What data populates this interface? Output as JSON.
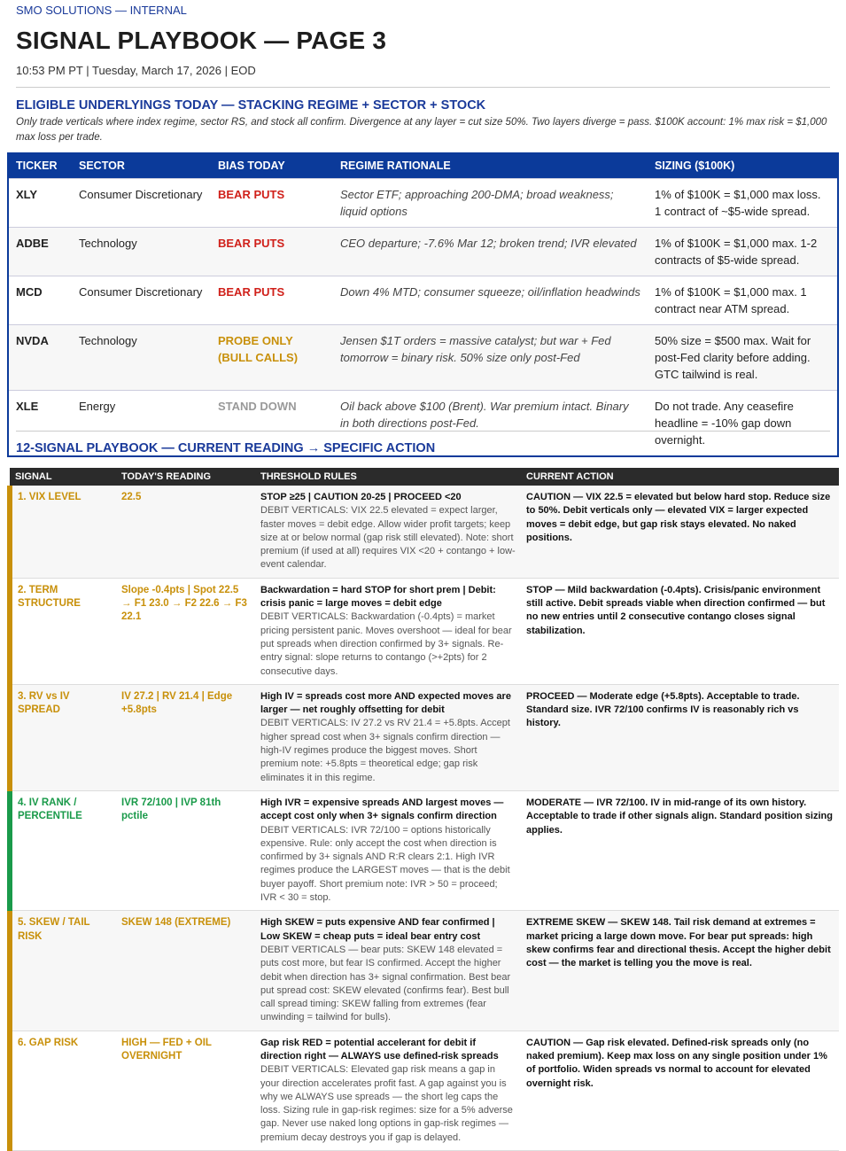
{
  "org": "SMO SOLUTIONS — INTERNAL",
  "title": "SIGNAL PLAYBOOK — PAGE 3",
  "meta": "10:53 PM PT | Tuesday, March 17, 2026 | EOD",
  "section1": {
    "heading": "ELIGIBLE UNDERLYINGS TODAY — STACKING REGIME + SECTOR + STOCK",
    "intro": "Only trade verticals where index regime, sector RS, and stock all confirm. Divergence at any layer = cut size 50%. Two layers diverge = pass. $100K account: 1% max risk = $1,000 max loss per trade.",
    "columns": [
      "TICKER",
      "SECTOR",
      "BIAS TODAY",
      "REGIME RATIONALE",
      "SIZING ($100K)"
    ],
    "rows": [
      {
        "ticker": "XLY",
        "sector": "Consumer Discretionary",
        "bias": "BEAR PUTS",
        "bias_color": "#d0201a",
        "rationale": "Sector ETF; approaching 200-DMA; broad weakness; liquid options",
        "sizing": "1% of $100K = $1,000 max loss. 1 contract of ~$5-wide spread."
      },
      {
        "ticker": "ADBE",
        "sector": "Technology",
        "bias": "BEAR PUTS",
        "bias_color": "#d0201a",
        "rationale": "CEO departure; -7.6% Mar 12; broken trend; IVR elevated",
        "sizing": "1% of $100K = $1,000 max. 1-2 contracts of $5-wide spread."
      },
      {
        "ticker": "MCD",
        "sector": "Consumer Discretionary",
        "bias": "BEAR PUTS",
        "bias_color": "#d0201a",
        "rationale": "Down 4% MTD; consumer squeeze; oil/inflation headwinds",
        "sizing": "1% of $100K = $1,000 max. 1 contract near ATM spread."
      },
      {
        "ticker": "NVDA",
        "sector": "Technology",
        "bias": "PROBE ONLY (BULL CALLS)",
        "bias_color": "#c8900a",
        "rationale": "Jensen $1T orders = massive catalyst; but war + Fed tomorrow = binary risk. 50% size only post-Fed",
        "sizing": "50% size = $500 max. Wait for post-Fed clarity before adding. GTC tailwind is real."
      },
      {
        "ticker": "XLE",
        "sector": "Energy",
        "bias": "STAND DOWN",
        "bias_color": "#999999",
        "rationale": "Oil back above $100 (Brent). War premium intact. Binary in both directions post-Fed.",
        "sizing": "Do not trade. Any ceasefire headline = -10% gap down overnight."
      }
    ]
  },
  "section2": {
    "heading": "12-SIGNAL PLAYBOOK — CURRENT READING → SPECIFIC ACTION",
    "columns": [
      "SIGNAL",
      "TODAY'S READING",
      "THRESHOLD RULES",
      "CURRENT ACTION"
    ],
    "rows": [
      {
        "signal": "1. VIX LEVEL",
        "reading": "22.5",
        "color": "#c8900a",
        "rule_bold": "STOP ≥25 | CAUTION 20-25 | PROCEED <20",
        "rule": "DEBIT VERTICALS: VIX 22.5 elevated = expect larger, faster moves = debit edge. Allow wider profit targets; keep size at or below normal (gap risk still elevated). Note: short premium (if used at all) requires VIX <20 + contango + low-event calendar.",
        "action": "CAUTION — VIX 22.5 = elevated but below hard stop. Reduce size to 50%. Debit verticals only — elevated VIX = larger expected moves = debit edge, but gap risk stays elevated. No naked positions."
      },
      {
        "signal": "2. TERM STRUCTURE",
        "reading": "Slope -0.4pts | Spot 22.5 → F1 23.0 → F2 22.6 → F3 22.1",
        "color": "#c8900a",
        "rule_bold": "Backwardation = hard STOP for short prem | Debit: crisis panic = large moves = debit edge",
        "rule": "DEBIT VERTICALS: Backwardation (-0.4pts) = market pricing persistent panic. Moves overshoot — ideal for bear put spreads when direction confirmed by 3+ signals. Re-entry signal: slope returns to contango (>+2pts) for 2 consecutive days.",
        "action": "STOP — Mild backwardation (-0.4pts). Crisis/panic environment still active. Debit spreads viable when direction confirmed — but no new entries until 2 consecutive contango closes signal stabilization."
      },
      {
        "signal": "3. RV vs IV SPREAD",
        "reading": "IV 27.2 | RV 21.4 | Edge +5.8pts",
        "color": "#c8900a",
        "rule_bold": "High IV = spreads cost more AND expected moves are larger — net roughly offsetting for debit",
        "rule": "DEBIT VERTICALS: IV 27.2 vs RV 21.4 = +5.8pts. Accept higher spread cost when 3+ signals confirm direction — high-IV regimes produce the biggest moves. Short premium note: +5.8pts = theoretical edge; gap risk eliminates it in this regime.",
        "action": "PROCEED — Moderate edge (+5.8pts). Acceptable to trade. Standard size. IVR 72/100 confirms IV is reasonably rich vs history."
      },
      {
        "signal": "4. IV RANK / PERCENTILE",
        "reading": "IVR 72/100 | IVP 81th pctile",
        "color": "#1a9a4a",
        "rule_bold": "High IVR = expensive spreads AND largest moves — accept cost only when 3+ signals confirm direction",
        "rule": "DEBIT VERTICALS: IVR 72/100 = options historically expensive. Rule: only accept the cost when direction is confirmed by 3+ signals AND R:R clears 2:1. High IVR regimes produce the LARGEST moves — that is the debit buyer payoff. Short premium note: IVR > 50 = proceed; IVR < 30 = stop.",
        "action": "MODERATE — IVR 72/100. IV in mid-range of its own history. Acceptable to trade if other signals align. Standard position sizing applies."
      },
      {
        "signal": "5. SKEW / TAIL RISK",
        "reading": "SKEW 148 (EXTREME)",
        "color": "#c8900a",
        "rule_bold": "High SKEW = puts expensive AND fear confirmed | Low SKEW = cheap puts = ideal bear entry cost",
        "rule": "DEBIT VERTICALS — bear puts: SKEW 148 elevated = puts cost more, but fear IS confirmed. Accept the higher debit when direction has 3+ signal confirmation. Best bear put spread cost: SKEW elevated (confirms fear). Best bull call spread timing: SKEW falling from extremes (fear unwinding = tailwind for bulls).",
        "action": "EXTREME SKEW — SKEW 148. Tail risk demand at extremes = market pricing a large down move. For bear put spreads: high skew confirms fear and directional thesis. Accept the higher debit cost — the market is telling you the move is real."
      },
      {
        "signal": "6. GAP RISK",
        "reading": "HIGH — FED + OIL OVERNIGHT",
        "color": "#c8900a",
        "rule_bold": "Gap risk RED = potential accelerant for debit if direction right — ALWAYS use defined-risk spreads",
        "rule": "DEBIT VERTICALS: Elevated gap risk means a gap in your direction accelerates profit fast. A gap against you is why we ALWAYS use spreads — the short leg caps the loss. Sizing rule in gap-risk regimes: size for a 5% adverse gap. Never use naked long options in gap-risk regimes — premium decay destroys you if gap is delayed.",
        "action": "CAUTION — Gap risk elevated. Defined-risk spreads only (no naked premium). Keep max loss on any single position under 1% of portfolio. Widen spreads vs normal to account for elevated overnight risk."
      }
    ]
  }
}
